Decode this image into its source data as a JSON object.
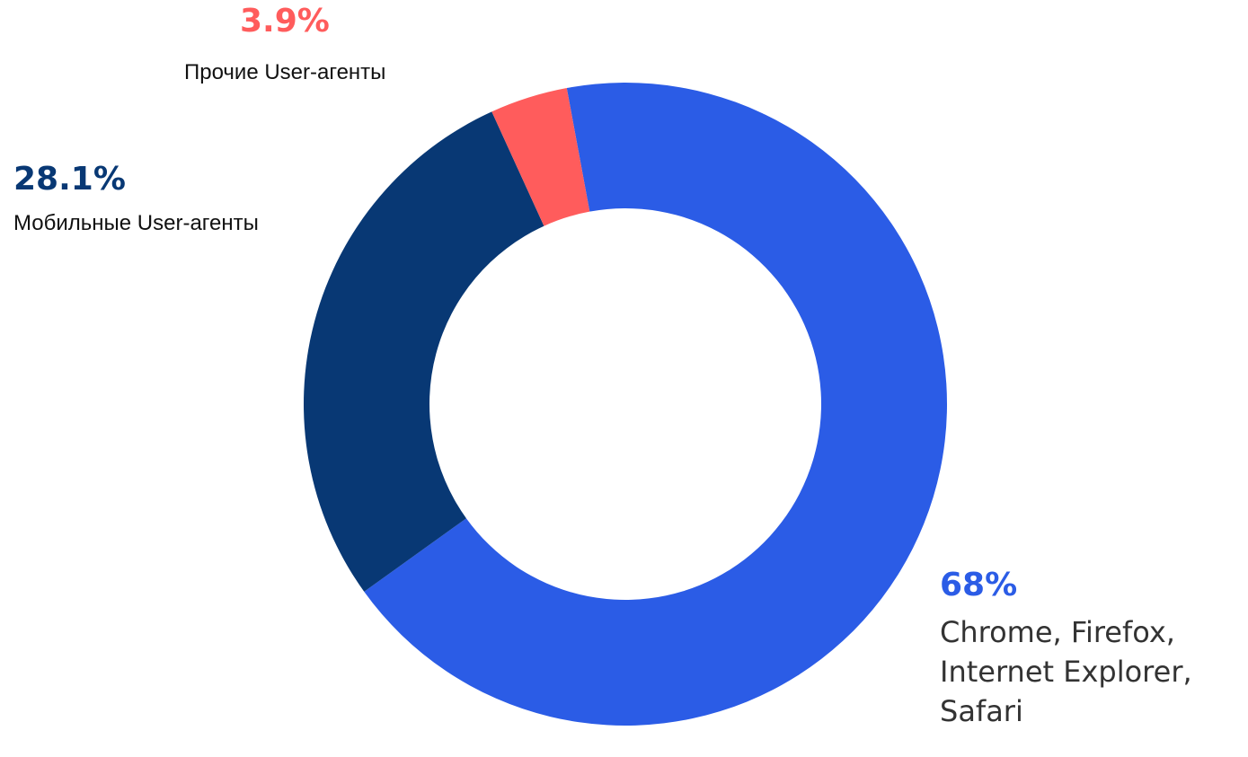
{
  "chart_data": {
    "type": "pie",
    "subtype": "donut",
    "title": "",
    "slices": [
      {
        "label": "Chrome, Firefox, Internet Explorer, Safari",
        "value": 68,
        "value_label": "68%",
        "color": "#2b5ce6"
      },
      {
        "label": "Мобильные User-агенты",
        "value": 28.1,
        "value_label": "28.1%",
        "color": "#083874"
      },
      {
        "label": "Прочие User-агенты",
        "value": 3.9,
        "value_label": "3.9%",
        "color": "#ff5c5c"
      }
    ],
    "legend": "none",
    "labels_placement": "outside"
  },
  "colors": {
    "background": "#ffffff",
    "label_text_small": "#111111",
    "label_text_large": "#333333"
  }
}
